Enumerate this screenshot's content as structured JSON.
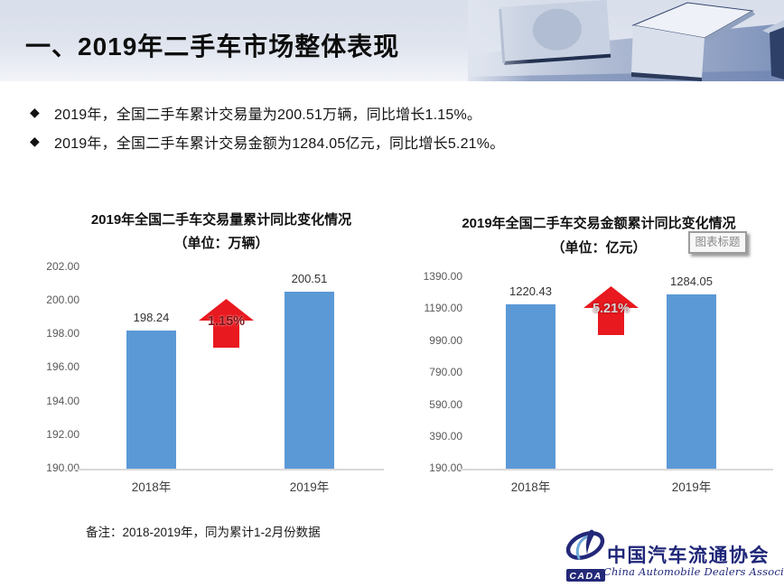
{
  "header": {
    "title": "一、2019年二手车市场整体表现"
  },
  "bullets": [
    {
      "marker": "◆",
      "text": "2019年，全国二手车累计交易量为200.51万辆，同比增长1.15%。"
    },
    {
      "marker": "◆",
      "text": "2019年，全国二手车累计交易金额为1284.05亿元，同比增长5.21%。"
    }
  ],
  "chart_data": [
    {
      "type": "bar",
      "title": "2019年全国二手车交易量累计同比变化情况",
      "subtitle": "（单位：万辆）",
      "categories": [
        "2018年",
        "2019年"
      ],
      "values": [
        198.24,
        200.51
      ],
      "value_labels": [
        "198.24",
        "200.51"
      ],
      "growth_label": "1.15%",
      "ylim": [
        190,
        202
      ],
      "ytick_interval": 2,
      "yticks": [
        "202.00",
        "200.00",
        "198.00",
        "196.00",
        "194.00",
        "192.00",
        "190.00"
      ],
      "grid": false,
      "legend": false
    },
    {
      "type": "bar",
      "title": "2019年全国二手车交易金额累计同比变化情况",
      "subtitle": "（单位：亿元）",
      "categories": [
        "2018年",
        "2019年"
      ],
      "values": [
        1220.43,
        1284.05
      ],
      "value_labels": [
        "1220.43",
        "1284.05"
      ],
      "growth_label": "5.21%",
      "ylim": [
        190,
        1390
      ],
      "ytick_interval": 200,
      "yticks": [
        "1390.00",
        "1190.00",
        "990.00",
        "790.00",
        "590.00",
        "390.00",
        "190.00"
      ],
      "grid": false,
      "legend": false
    }
  ],
  "tooltip": {
    "label": "图表标题"
  },
  "footnote": "备注：2018-2019年，同为累计1-2月份数据",
  "logo": {
    "acronym": "CADA",
    "name_cn": "中国汽车流通协会",
    "name_en": "China Automobile Dealers Association"
  },
  "colors": {
    "bar": "#5B99D6",
    "arrow_red": "#E8191F",
    "navy": "#232878",
    "axis_text": "#595959",
    "baseline": "#D9D9D9"
  }
}
